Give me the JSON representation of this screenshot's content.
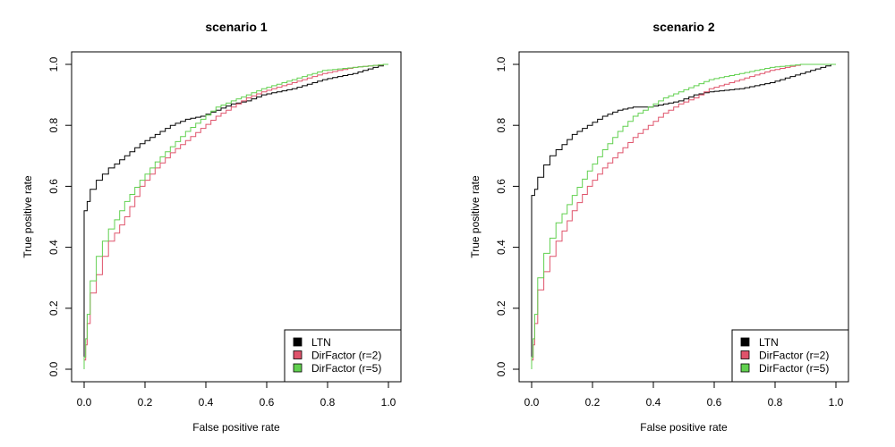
{
  "chart_data": [
    {
      "type": "line",
      "title": "scenario 1",
      "xlabel": "False positive rate",
      "ylabel": "True positive rate",
      "xlim": [
        0,
        1
      ],
      "ylim": [
        0,
        1
      ],
      "x_ticks": [
        "0.0",
        "0.2",
        "0.4",
        "0.6",
        "0.8",
        "1.0"
      ],
      "y_ticks": [
        "0.0",
        "0.2",
        "0.4",
        "0.6",
        "0.8",
        "1.0"
      ],
      "legend_position": "bottom-right",
      "series": [
        {
          "name": "LTN",
          "color": "#000000",
          "x": [
            0,
            0,
            0.01,
            0.02,
            0.04,
            0.06,
            0.08,
            0.1,
            0.15,
            0.2,
            0.25,
            0.3,
            0.35,
            0.4,
            0.45,
            0.5,
            0.55,
            0.6,
            0.7,
            0.8,
            0.9,
            1.0
          ],
          "y": [
            0,
            0.47,
            0.52,
            0.55,
            0.59,
            0.62,
            0.64,
            0.66,
            0.7,
            0.74,
            0.77,
            0.8,
            0.82,
            0.83,
            0.85,
            0.87,
            0.88,
            0.9,
            0.92,
            0.95,
            0.97,
            1.0
          ]
        },
        {
          "name": "DirFactor (r=2)",
          "color": "#DF536B",
          "x": [
            0,
            0.005,
            0.01,
            0.02,
            0.04,
            0.06,
            0.08,
            0.1,
            0.15,
            0.2,
            0.25,
            0.3,
            0.35,
            0.4,
            0.45,
            0.5,
            0.55,
            0.6,
            0.7,
            0.8,
            0.9,
            1.0
          ],
          "y": [
            0,
            0.03,
            0.08,
            0.15,
            0.25,
            0.31,
            0.37,
            0.42,
            0.5,
            0.6,
            0.66,
            0.71,
            0.75,
            0.79,
            0.83,
            0.86,
            0.89,
            0.91,
            0.94,
            0.97,
            0.99,
            1.0
          ]
        },
        {
          "name": "DirFactor (r=5)",
          "color": "#61D04F",
          "x": [
            0,
            0.005,
            0.01,
            0.02,
            0.04,
            0.06,
            0.08,
            0.1,
            0.15,
            0.2,
            0.25,
            0.3,
            0.35,
            0.4,
            0.45,
            0.5,
            0.55,
            0.6,
            0.7,
            0.8,
            0.9,
            1.0
          ],
          "y": [
            0,
            0.04,
            0.1,
            0.18,
            0.29,
            0.37,
            0.42,
            0.46,
            0.55,
            0.62,
            0.68,
            0.73,
            0.78,
            0.82,
            0.86,
            0.88,
            0.9,
            0.92,
            0.95,
            0.98,
            0.99,
            1.0
          ]
        }
      ]
    },
    {
      "type": "line",
      "title": "scenario 2",
      "xlabel": "False positive rate",
      "ylabel": "True positive rate",
      "xlim": [
        0,
        1
      ],
      "ylim": [
        0,
        1
      ],
      "x_ticks": [
        "0.0",
        "0.2",
        "0.4",
        "0.6",
        "0.8",
        "1.0"
      ],
      "y_ticks": [
        "0.0",
        "0.2",
        "0.4",
        "0.6",
        "0.8",
        "1.0"
      ],
      "legend_position": "bottom-right",
      "series": [
        {
          "name": "LTN",
          "color": "#000000",
          "x": [
            0,
            0,
            0.01,
            0.02,
            0.04,
            0.06,
            0.08,
            0.1,
            0.15,
            0.2,
            0.25,
            0.3,
            0.35,
            0.4,
            0.45,
            0.5,
            0.55,
            0.6,
            0.7,
            0.8,
            0.9,
            1.0
          ],
          "y": [
            0,
            0.52,
            0.57,
            0.59,
            0.63,
            0.67,
            0.7,
            0.72,
            0.77,
            0.8,
            0.83,
            0.85,
            0.86,
            0.86,
            0.87,
            0.88,
            0.9,
            0.91,
            0.92,
            0.94,
            0.97,
            1.0
          ]
        },
        {
          "name": "DirFactor (r=2)",
          "color": "#DF536B",
          "x": [
            0,
            0.005,
            0.01,
            0.02,
            0.04,
            0.06,
            0.08,
            0.1,
            0.15,
            0.2,
            0.25,
            0.3,
            0.35,
            0.4,
            0.45,
            0.5,
            0.55,
            0.6,
            0.7,
            0.8,
            0.9,
            1.0
          ],
          "y": [
            0,
            0.03,
            0.08,
            0.15,
            0.26,
            0.32,
            0.37,
            0.42,
            0.52,
            0.6,
            0.66,
            0.71,
            0.76,
            0.8,
            0.84,
            0.87,
            0.89,
            0.92,
            0.95,
            0.98,
            1.0,
            1.0
          ]
        },
        {
          "name": "DirFactor (r=5)",
          "color": "#61D04F",
          "x": [
            0,
            0.005,
            0.01,
            0.02,
            0.04,
            0.06,
            0.08,
            0.1,
            0.15,
            0.2,
            0.25,
            0.3,
            0.35,
            0.4,
            0.45,
            0.5,
            0.55,
            0.6,
            0.7,
            0.8,
            0.9,
            1.0
          ],
          "y": [
            0,
            0.04,
            0.1,
            0.18,
            0.3,
            0.38,
            0.43,
            0.48,
            0.57,
            0.65,
            0.72,
            0.78,
            0.83,
            0.86,
            0.89,
            0.91,
            0.93,
            0.95,
            0.97,
            0.99,
            1.0,
            1.0
          ]
        }
      ]
    }
  ]
}
